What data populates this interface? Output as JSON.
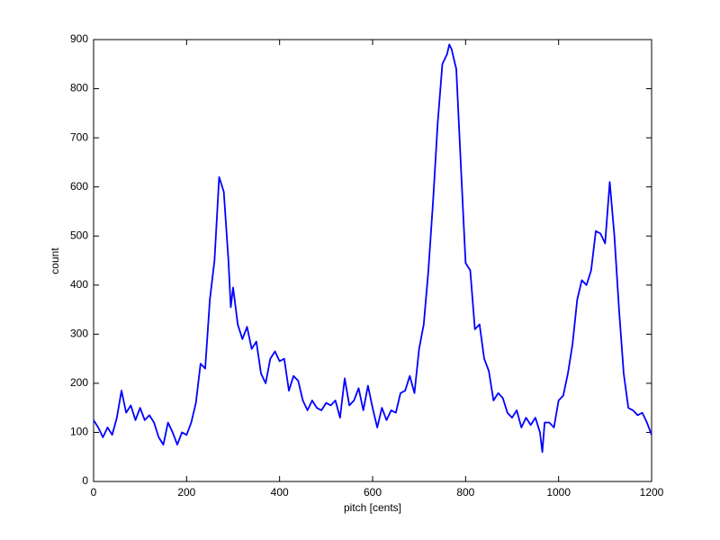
{
  "chart_data": {
    "type": "line",
    "xlabel": "pitch [cents]",
    "ylabel": "count",
    "x": [
      0,
      10,
      20,
      30,
      40,
      50,
      60,
      70,
      80,
      90,
      100,
      110,
      120,
      130,
      140,
      150,
      160,
      170,
      180,
      190,
      200,
      210,
      220,
      230,
      240,
      250,
      260,
      270,
      280,
      290,
      295,
      300,
      310,
      320,
      330,
      340,
      350,
      360,
      370,
      380,
      390,
      400,
      410,
      420,
      430,
      440,
      450,
      460,
      470,
      480,
      490,
      500,
      510,
      520,
      530,
      540,
      550,
      560,
      570,
      580,
      590,
      600,
      610,
      620,
      630,
      640,
      650,
      660,
      670,
      680,
      690,
      700,
      710,
      720,
      730,
      740,
      750,
      760,
      765,
      770,
      780,
      790,
      800,
      810,
      820,
      830,
      840,
      850,
      860,
      870,
      880,
      890,
      900,
      910,
      920,
      930,
      940,
      950,
      960,
      965,
      970,
      980,
      990,
      1000,
      1010,
      1020,
      1030,
      1040,
      1050,
      1060,
      1070,
      1080,
      1090,
      1100,
      1110,
      1120,
      1130,
      1140,
      1150,
      1160,
      1170,
      1180,
      1190,
      1200
    ],
    "series": [
      {
        "color": "#0000ff",
        "values": [
          125,
          110,
          90,
          110,
          95,
          130,
          185,
          140,
          155,
          125,
          150,
          125,
          135,
          120,
          90,
          75,
          120,
          100,
          75,
          100,
          95,
          120,
          160,
          240,
          230,
          370,
          450,
          620,
          590,
          450,
          355,
          395,
          320,
          290,
          315,
          270,
          285,
          220,
          200,
          250,
          265,
          245,
          250,
          185,
          215,
          205,
          165,
          145,
          165,
          150,
          145,
          160,
          155,
          165,
          130,
          210,
          155,
          165,
          190,
          145,
          195,
          150,
          110,
          150,
          125,
          145,
          140,
          180,
          185,
          215,
          180,
          270,
          320,
          430,
          570,
          730,
          850,
          870,
          890,
          880,
          840,
          640,
          445,
          430,
          310,
          320,
          250,
          225,
          165,
          180,
          170,
          140,
          130,
          145,
          110,
          130,
          115,
          130,
          100,
          60,
          120,
          120,
          110,
          165,
          175,
          220,
          280,
          370,
          410,
          400,
          430,
          510,
          505,
          485,
          610,
          500,
          350,
          220,
          150,
          145,
          135,
          140,
          120,
          95
        ]
      }
    ],
    "xlim": [
      0,
      1200
    ],
    "ylim": [
      0,
      900
    ],
    "xticks": [
      0,
      200,
      400,
      600,
      800,
      1000,
      1200
    ],
    "yticks": [
      0,
      100,
      200,
      300,
      400,
      500,
      600,
      700,
      800,
      900
    ]
  }
}
